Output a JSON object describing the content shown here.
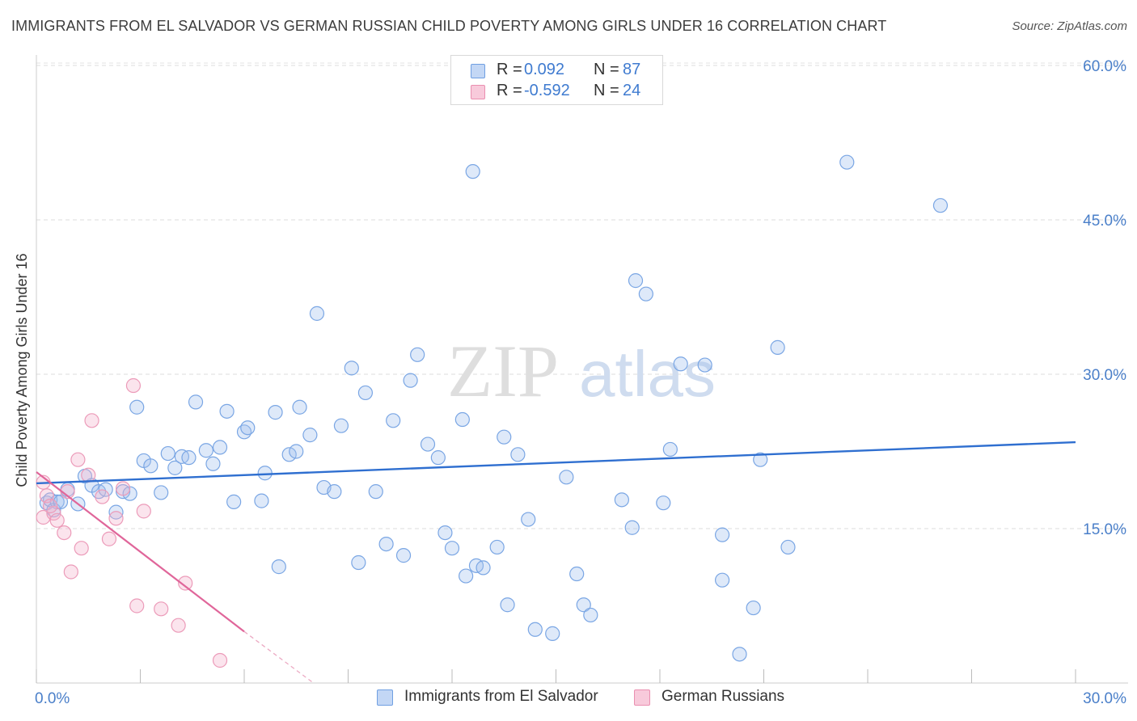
{
  "title": "IMMIGRANTS FROM EL SALVADOR VS GERMAN RUSSIAN CHILD POVERTY AMONG GIRLS UNDER 16 CORRELATION CHART",
  "source": "Source: ZipAtlas.com",
  "watermark": {
    "zip": "ZIP",
    "atlas": "atlas"
  },
  "legend": {
    "series1": {
      "r_label": "R =",
      "r_value": "0.092",
      "n_label": "N =",
      "n_value": "87"
    },
    "series2": {
      "r_label": "R =",
      "r_value": "-0.592",
      "n_label": "N =",
      "n_value": "24"
    }
  },
  "chart_data": {
    "type": "scatter",
    "title": "IMMIGRANTS FROM EL SALVADOR VS GERMAN RUSSIAN CHILD POVERTY AMONG GIRLS UNDER 16 CORRELATION CHART",
    "xlabel": "",
    "ylabel": "Child Poverty Among Girls Under 16",
    "xlim": [
      0,
      30
    ],
    "ylim": [
      0,
      60
    ],
    "x_tick_labels": [
      "0.0%",
      "30.0%"
    ],
    "y_tick_labels": [
      "15.0%",
      "30.0%",
      "45.0%",
      "60.0%"
    ],
    "y_ticks": [
      15,
      30,
      45,
      60
    ],
    "grid": true,
    "legend_position": "top-center",
    "colors": {
      "series1": "#6f9fe2",
      "series2": "#ea8fb0",
      "line1": "#2f6fd0",
      "line2": "#e0669a"
    },
    "series": [
      {
        "name": "Immigrants from El Salvador",
        "r": 0.092,
        "n": 87,
        "trend": {
          "x": [
            0,
            30
          ],
          "y": [
            19.4,
            23.4
          ]
        },
        "points": [
          [
            0.3,
            17.5
          ],
          [
            0.4,
            17.8
          ],
          [
            0.5,
            16.8
          ],
          [
            0.6,
            17.6
          ],
          [
            0.7,
            17.6
          ],
          [
            0.9,
            18.8
          ],
          [
            1.2,
            17.4
          ],
          [
            1.4,
            20.1
          ],
          [
            1.6,
            19.2
          ],
          [
            1.8,
            18.6
          ],
          [
            2.0,
            18.8
          ],
          [
            2.3,
            16.6
          ],
          [
            2.5,
            18.6
          ],
          [
            2.7,
            18.4
          ],
          [
            2.9,
            26.8
          ],
          [
            3.1,
            21.6
          ],
          [
            3.3,
            21.1
          ],
          [
            3.6,
            18.5
          ],
          [
            3.8,
            22.3
          ],
          [
            4.0,
            20.9
          ],
          [
            4.2,
            22.0
          ],
          [
            4.4,
            21.9
          ],
          [
            4.6,
            27.3
          ],
          [
            4.9,
            22.6
          ],
          [
            5.1,
            21.3
          ],
          [
            5.3,
            22.9
          ],
          [
            5.5,
            26.4
          ],
          [
            5.7,
            17.6
          ],
          [
            6.0,
            24.4
          ],
          [
            6.1,
            24.8
          ],
          [
            6.5,
            17.7
          ],
          [
            6.6,
            20.4
          ],
          [
            6.9,
            26.3
          ],
          [
            7.0,
            11.3
          ],
          [
            7.3,
            22.2
          ],
          [
            7.5,
            22.5
          ],
          [
            7.6,
            26.8
          ],
          [
            7.9,
            24.1
          ],
          [
            8.1,
            35.9
          ],
          [
            8.3,
            19.0
          ],
          [
            8.6,
            18.6
          ],
          [
            8.8,
            25.0
          ],
          [
            9.1,
            30.6
          ],
          [
            9.3,
            11.7
          ],
          [
            9.5,
            28.2
          ],
          [
            9.8,
            18.6
          ],
          [
            10.1,
            13.5
          ],
          [
            10.3,
            25.5
          ],
          [
            10.6,
            12.4
          ],
          [
            10.8,
            29.4
          ],
          [
            11.0,
            31.9
          ],
          [
            11.3,
            23.2
          ],
          [
            11.6,
            21.9
          ],
          [
            11.8,
            14.6
          ],
          [
            12.0,
            13.1
          ],
          [
            12.3,
            25.6
          ],
          [
            12.4,
            10.4
          ],
          [
            12.7,
            11.4
          ],
          [
            12.9,
            11.2
          ],
          [
            12.6,
            49.7
          ],
          [
            13.3,
            13.2
          ],
          [
            13.5,
            23.9
          ],
          [
            13.6,
            7.6
          ],
          [
            13.9,
            22.2
          ],
          [
            14.2,
            15.9
          ],
          [
            14.4,
            5.2
          ],
          [
            14.9,
            4.8
          ],
          [
            15.3,
            20.0
          ],
          [
            15.6,
            10.6
          ],
          [
            15.8,
            7.6
          ],
          [
            16.0,
            6.6
          ],
          [
            16.9,
            17.8
          ],
          [
            17.2,
            15.1
          ],
          [
            17.3,
            39.1
          ],
          [
            17.6,
            37.8
          ],
          [
            18.1,
            17.5
          ],
          [
            18.3,
            22.7
          ],
          [
            18.6,
            31.0
          ],
          [
            19.3,
            30.9
          ],
          [
            19.8,
            14.4
          ],
          [
            19.8,
            10.0
          ],
          [
            20.3,
            2.8
          ],
          [
            20.7,
            7.3
          ],
          [
            20.9,
            21.7
          ],
          [
            21.4,
            32.6
          ],
          [
            21.7,
            13.2
          ],
          [
            23.4,
            50.6
          ],
          [
            26.1,
            46.4
          ]
        ]
      },
      {
        "name": "German Russians",
        "r": -0.592,
        "n": 24,
        "trend": {
          "x": [
            0,
            6.0
          ],
          "y": [
            20.5,
            5.0
          ]
        },
        "trend_dashed": {
          "x": [
            6.0,
            8.0
          ],
          "y": [
            5.0,
            0.0
          ]
        },
        "points": [
          [
            0.2,
            16.1
          ],
          [
            0.3,
            18.2
          ],
          [
            0.5,
            16.5
          ],
          [
            0.6,
            15.8
          ],
          [
            0.8,
            14.6
          ],
          [
            1.0,
            10.8
          ],
          [
            1.3,
            13.1
          ],
          [
            1.5,
            20.2
          ],
          [
            1.6,
            25.5
          ],
          [
            1.9,
            18.1
          ],
          [
            2.1,
            14.0
          ],
          [
            2.3,
            16.0
          ],
          [
            2.5,
            18.9
          ],
          [
            2.8,
            28.9
          ],
          [
            2.9,
            7.5
          ],
          [
            3.1,
            16.7
          ],
          [
            3.6,
            7.2
          ],
          [
            4.1,
            5.6
          ],
          [
            4.3,
            9.7
          ],
          [
            5.3,
            2.2
          ],
          [
            0.2,
            19.5
          ],
          [
            0.4,
            17.2
          ],
          [
            1.2,
            21.7
          ],
          [
            0.9,
            18.6
          ]
        ]
      }
    ]
  },
  "bottom_legend": {
    "item1": "Immigrants from El Salvador",
    "item2": "German Russians"
  }
}
